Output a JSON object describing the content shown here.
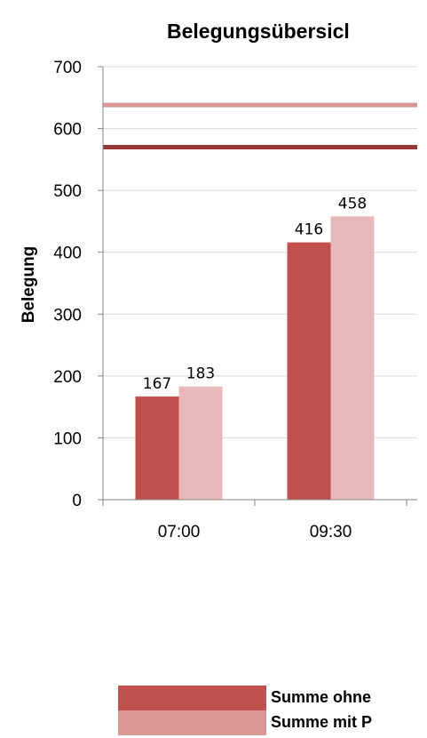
{
  "chart_data": {
    "type": "bar",
    "title": "Belegungsübersicl",
    "ylabel": "Belegung",
    "xlabel": "",
    "ylim": [
      0,
      700
    ],
    "yticks": [
      "0",
      "100",
      "200",
      "300",
      "400",
      "500",
      "600",
      "700"
    ],
    "categories": [
      "07:00",
      "09:30"
    ],
    "series": [
      {
        "name": "Summe ohne",
        "color": "#c0504d",
        "values": [
          167,
          416
        ],
        "labels": [
          "167",
          "416"
        ]
      },
      {
        "name": "Summe mit P",
        "color": "#e6b9b8",
        "values": [
          183,
          458
        ],
        "labels": [
          "183",
          "458"
        ]
      }
    ],
    "reference_lines": [
      {
        "value": 638,
        "color": "#d99694"
      },
      {
        "value": 570,
        "color": "#953735"
      }
    ],
    "legend": [
      {
        "label": "Summe ohne",
        "color": "#c0504d"
      },
      {
        "label": "Summe mit P",
        "color": "#d99694"
      }
    ],
    "legend_position": "bottom",
    "grid": true
  }
}
